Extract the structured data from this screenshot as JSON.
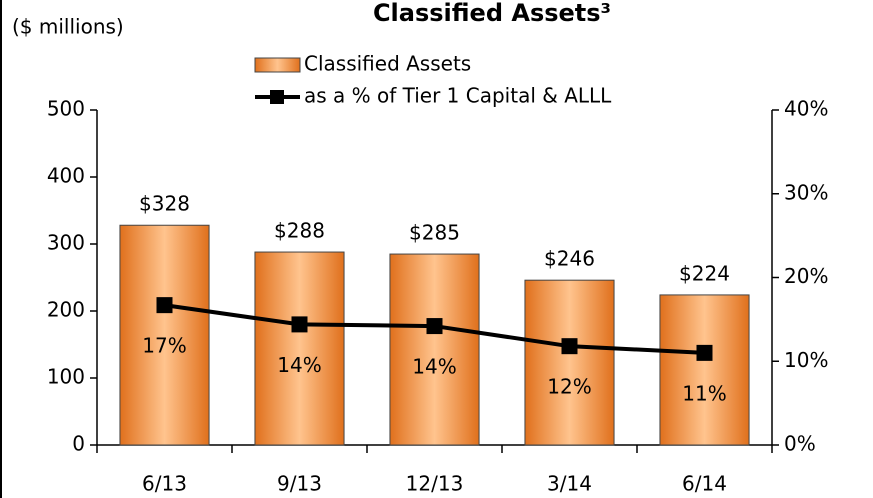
{
  "chart_data": {
    "type": "bar_line",
    "title": "Classified Assets³",
    "unit_label": "($ millions)",
    "categories": [
      "6/13",
      "9/13",
      "12/13",
      "3/14",
      "6/14"
    ],
    "series": [
      {
        "name": "Classified Assets",
        "type": "bar",
        "color": "#f08a30",
        "values": [
          328,
          288,
          285,
          246,
          224
        ],
        "value_labels": [
          "$328",
          "$288",
          "$285",
          "$246",
          "$224"
        ]
      },
      {
        "name": "as a % of Tier 1 Capital & ALLL",
        "type": "line",
        "axis": "y2",
        "color": "#000000",
        "values": [
          16.7,
          14.4,
          14.2,
          11.8,
          11.0
        ],
        "value_labels": [
          "17%",
          "14%",
          "14%",
          "12%",
          "11%"
        ]
      }
    ],
    "ylim": [
      0,
      500
    ],
    "yticks": [
      0,
      100,
      200,
      300,
      400,
      500
    ],
    "y2lim": [
      0,
      40
    ],
    "y2ticks": [
      {
        "value": 0,
        "label": "0%"
      },
      {
        "value": 10,
        "label": "10%"
      },
      {
        "value": 20,
        "label": "20%"
      },
      {
        "value": 30,
        "label": "30%"
      },
      {
        "value": 40,
        "label": "40%"
      }
    ]
  }
}
